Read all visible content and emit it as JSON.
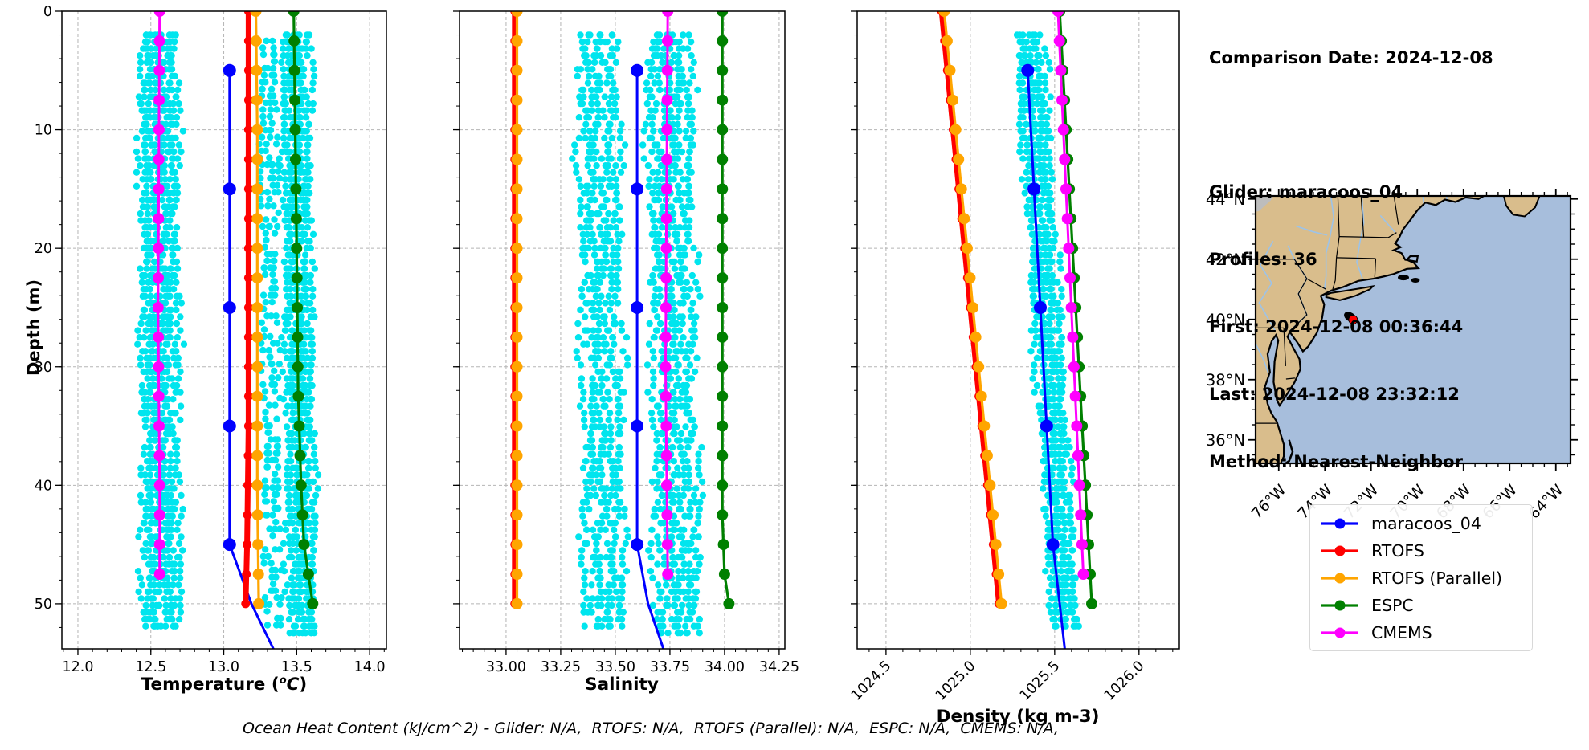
{
  "info_panel": {
    "date_line": "Comparison Date: 2024-12-08",
    "lines": [
      "Glider: maracoos_04",
      "Profiles: 36",
      "First: 2024-12-08 00:36:44",
      "Last: 2024-12-08 23:32:12",
      "Method: Nearest-Neighbor"
    ]
  },
  "caption": "Ocean Heat Content (kJ/cm^2) - Glider: N/A,  RTOFS: N/A,  RTOFS (Parallel): N/A,  ESPC: N/A,  CMEMS: N/A,",
  "charts_meta": {
    "ylabel": "Depth (m)"
  },
  "depth_axis": {
    "ticks": [
      0,
      10,
      20,
      30,
      40,
      50
    ],
    "labels": [
      "0",
      "10",
      "20",
      "30",
      "40",
      "50"
    ],
    "minor": 2,
    "label": "Depth (m)"
  },
  "colors": {
    "scatter": "#00e5ee",
    "glider": "#0000ff",
    "rtofs": "#ff0000",
    "rtofs_parallel": "#ffa500",
    "espc": "#008000",
    "cmems": "#ff00ff",
    "land": "#d9bd8c",
    "ocean": "#a7bedc",
    "river": "#9dc3e8",
    "lake_gray": "#bdbdbd",
    "grid": "#b5b5b5"
  },
  "legend": {
    "items": [
      {
        "label": "maracoos_04",
        "color": "#0000ff"
      },
      {
        "label": "RTOFS",
        "color": "#ff0000"
      },
      {
        "label": "RTOFS (Parallel)",
        "color": "#ffa500"
      },
      {
        "label": "ESPC",
        "color": "#008000"
      },
      {
        "label": "CMEMS",
        "color": "#ff00ff"
      }
    ]
  },
  "chart_data": [
    {
      "id": "temperature",
      "type": "line+scatter",
      "xlabel": "Temperature (°C)",
      "xlabel_parts": {
        "pre": "Temperature (",
        "sup": "o",
        "it": "C",
        "post": ")"
      },
      "ylabel": "Depth (m)",
      "xlim": [
        11.89,
        14.115
      ],
      "ylim": [
        0,
        53.8
      ],
      "xticks": [
        12.0,
        12.5,
        13.0,
        13.5,
        14.0
      ],
      "xtick_labels": [
        "12.0",
        "12.5",
        "13.0",
        "13.5",
        "14.0"
      ],
      "xminor": 0.1,
      "grid": true,
      "series": [
        {
          "name": "maracoos_04",
          "color": "#0000ff",
          "lw": 3,
          "r": 8,
          "pts": [
            [
              13.04,
              5
            ],
            [
              13.04,
              45
            ],
            [
              13.19,
              50
            ],
            [
              13.34,
              53.8
            ]
          ],
          "markers": {
            "from": 5,
            "to": 45,
            "step": 10
          }
        },
        {
          "name": "RTOFS",
          "color": "#ff0000",
          "lw": 7,
          "r": 5.5,
          "pts": [
            [
              13.17,
              0
            ],
            [
              13.17,
              35
            ],
            [
              13.16,
              45
            ],
            [
              13.15,
              50
            ]
          ],
          "markers": {
            "from": 0,
            "to": 50,
            "step": 2.5
          }
        },
        {
          "name": "RTOFS (Parallel)",
          "color": "#ffa500",
          "lw": 3.2,
          "r": 7,
          "pts": [
            [
              13.22,
              0
            ],
            [
              13.23,
              10
            ],
            [
              13.23,
              40
            ],
            [
              13.24,
              50
            ]
          ],
          "markers": {
            "from": 0,
            "to": 50,
            "step": 2.5
          }
        },
        {
          "name": "ESPC",
          "color": "#008000",
          "lw": 3.2,
          "r": 7,
          "pts": [
            [
              13.48,
              0
            ],
            [
              13.5,
              20
            ],
            [
              13.51,
              32
            ],
            [
              13.53,
              40
            ],
            [
              13.55,
              45
            ],
            [
              13.61,
              50
            ]
          ],
          "markers": {
            "from": 0,
            "to": 50,
            "step": 2.5
          }
        },
        {
          "name": "CMEMS",
          "color": "#ff00ff",
          "lw": 3,
          "r": 7,
          "pts": [
            [
              12.56,
              0
            ],
            [
              12.55,
              25
            ],
            [
              12.56,
              40
            ],
            [
              12.56,
              47.5
            ]
          ],
          "markers": {
            "from": 0,
            "to": 47.5,
            "step": 2.5
          }
        }
      ],
      "scatter_bands": [
        {
          "center": 12.555,
          "hw": 0.13,
          "slope": 0.0003,
          "top": 2,
          "bottom": 52,
          "cols": 11,
          "density": 0.95,
          "seed": 11
        },
        {
          "center": 13.305,
          "hw": 0.06,
          "slope": 0.0006,
          "top": 2.5,
          "bottom": 52,
          "cols": 5,
          "density": 0.5,
          "seed": 22
        },
        {
          "center": 13.49,
          "hw": 0.1,
          "slope": 0.0009,
          "top": 2,
          "bottom": 52.5,
          "cols": 9,
          "density": 0.95,
          "seed": 33
        }
      ]
    },
    {
      "id": "salinity",
      "type": "line+scatter",
      "xlabel": "Salinity",
      "xlim": [
        32.787,
        34.276
      ],
      "ylim": [
        0,
        53.8
      ],
      "xticks": [
        33.0,
        33.25,
        33.5,
        33.75,
        34.0,
        34.25
      ],
      "xtick_labels": [
        "33.00",
        "33.25",
        "33.50",
        "33.75",
        "34.00",
        "34.25"
      ],
      "xminor": 0.05,
      "grid": true,
      "series": [
        {
          "name": "maracoos_04",
          "color": "#0000ff",
          "lw": 3,
          "r": 8,
          "pts": [
            [
              33.6,
              5
            ],
            [
              33.6,
              45
            ],
            [
              33.65,
              50
            ],
            [
              33.72,
              53.8
            ]
          ],
          "markers": {
            "from": 5,
            "to": 45,
            "step": 10
          }
        },
        {
          "name": "RTOFS",
          "color": "#ff0000",
          "lw": 7,
          "r": 5.5,
          "pts": [
            [
              33.04,
              0
            ],
            [
              33.04,
              50
            ]
          ],
          "markers": {
            "from": 0,
            "to": 50,
            "step": 2.5
          }
        },
        {
          "name": "RTOFS (Parallel)",
          "color": "#ffa500",
          "lw": 3.2,
          "r": 7,
          "pts": [
            [
              33.05,
              0
            ],
            [
              33.05,
              50
            ]
          ],
          "markers": {
            "from": 0,
            "to": 50,
            "step": 2.5
          }
        },
        {
          "name": "ESPC",
          "color": "#008000",
          "lw": 3.2,
          "r": 7,
          "pts": [
            [
              33.99,
              0
            ],
            [
              33.99,
              42.5
            ],
            [
              34.0,
              47.5
            ],
            [
              34.02,
              50
            ]
          ],
          "markers": {
            "from": 0,
            "to": 50,
            "step": 2.5
          }
        },
        {
          "name": "CMEMS",
          "color": "#ff00ff",
          "lw": 3,
          "r": 7,
          "pts": [
            [
              33.74,
              0
            ],
            [
              33.73,
              30
            ],
            [
              33.74,
              47.5
            ]
          ],
          "markers": {
            "from": 0,
            "to": 47.5,
            "step": 2.5
          }
        }
      ],
      "scatter_bands": [
        {
          "center": 33.42,
          "hw": 0.1,
          "slope": 0.0006,
          "top": 2,
          "bottom": 52,
          "cols": 8,
          "density": 0.9,
          "seed": 44
        },
        {
          "center": 33.745,
          "hw": 0.105,
          "slope": 0.0008,
          "top": 2,
          "bottom": 52.5,
          "cols": 9,
          "density": 0.95,
          "seed": 55
        }
      ]
    },
    {
      "id": "density",
      "type": "line+scatter",
      "xlabel": "Density (kg m-3)",
      "xlim": [
        1024.329,
        1026.239
      ],
      "ylim": [
        0,
        53.8
      ],
      "xticks": [
        1024.5,
        1025.0,
        1025.5,
        1026.0
      ],
      "xtick_labels": [
        "1024.5",
        "1025.0",
        "1025.5",
        "1026.0"
      ],
      "xminor": 0.1,
      "xtick_rotation": 45,
      "grid": true,
      "series": [
        {
          "name": "maracoos_04",
          "color": "#0000ff",
          "lw": 3,
          "r": 8,
          "pts": [
            [
              1025.34,
              5
            ],
            [
              1025.49,
              45
            ],
            [
              1025.53,
              50
            ],
            [
              1025.56,
              53.8
            ]
          ],
          "markers": {
            "from": 5,
            "to": 45,
            "step": 10
          }
        },
        {
          "name": "RTOFS",
          "color": "#ff0000",
          "lw": 7,
          "r": 5.5,
          "pts": [
            [
              1024.83,
              0
            ],
            [
              1025.17,
              50
            ]
          ],
          "markers": {
            "from": 0,
            "to": 50,
            "step": 2.5
          }
        },
        {
          "name": "RTOFS (Parallel)",
          "color": "#ffa500",
          "lw": 3.2,
          "r": 7,
          "pts": [
            [
              1024.845,
              0
            ],
            [
              1025.185,
              50
            ]
          ],
          "markers": {
            "from": 0,
            "to": 50,
            "step": 2.5
          }
        },
        {
          "name": "ESPC",
          "color": "#008000",
          "lw": 3.2,
          "r": 7,
          "pts": [
            [
              1025.53,
              0
            ],
            [
              1025.72,
              50
            ]
          ],
          "markers": {
            "from": 0,
            "to": 50,
            "step": 2.5
          }
        },
        {
          "name": "CMEMS",
          "color": "#ff00ff",
          "lw": 3,
          "r": 7,
          "pts": [
            [
              1025.52,
              0
            ],
            [
              1025.67,
              47.5
            ]
          ],
          "markers": {
            "from": 0,
            "to": 47.5,
            "step": 2.5
          }
        }
      ],
      "scatter_bands": [
        {
          "center": 1025.345,
          "hw": 0.085,
          "slope": 0.0042,
          "top": 2,
          "bottom": 52.4,
          "cols": 9,
          "density": 0.95,
          "seed": 66
        }
      ]
    }
  ],
  "map": {
    "lat_tick_labels": [
      "44°N",
      "42°N",
      "40°N",
      "38°N",
      "36°N"
    ],
    "lat_tick_values": [
      44,
      42,
      40,
      38,
      36
    ],
    "lon_tick_labels": [
      "76°W",
      "74°W",
      "72°W",
      "70°W",
      "68°W",
      "66°W",
      "64°W"
    ],
    "lon_tick_values": [
      -76,
      -74,
      -72,
      -70,
      -68,
      -66,
      -64
    ],
    "glider_marker": {
      "lon": -72.78,
      "lat": 39.99,
      "color": "#ff0000"
    },
    "track_marker": {
      "lon": -72.9,
      "lat": 40.08,
      "color": "#000000"
    }
  }
}
